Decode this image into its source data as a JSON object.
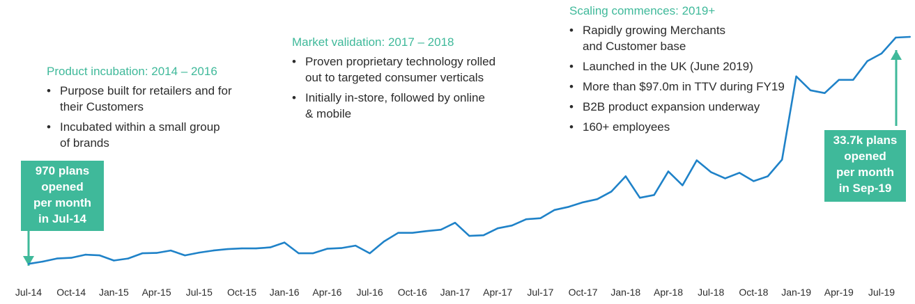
{
  "phases": [
    {
      "title": "Product incubation: 2014 – 2016",
      "bullets": [
        [
          "Purpose built for retailers and for",
          "their Customers"
        ],
        [
          "Incubated within a small group",
          "of brands"
        ]
      ]
    },
    {
      "title": "Market validation: 2017 – 2018",
      "bullets": [
        [
          "Proven proprietary technology rolled",
          "out to targeted consumer verticals"
        ],
        [
          "Initially in-store, followed by online",
          "& mobile"
        ]
      ]
    },
    {
      "title": "Scaling commences: 2019+",
      "bullets": [
        [
          "Rapidly growing Merchants",
          "and Customer base"
        ],
        [
          "Launched in the UK (June 2019)"
        ],
        [
          "More than $97.0m in TTV during FY19"
        ],
        [
          "B2B product expansion underway"
        ],
        [
          "160+ employees"
        ]
      ]
    }
  ],
  "callouts": {
    "start": [
      "970 plans",
      "opened",
      "per month",
      "in Jul-14"
    ],
    "end": [
      "33.7k plans",
      "opened",
      "per month",
      "in Sep-19"
    ]
  },
  "colors": {
    "accent": "#3fb99a",
    "line": "#1f82c8",
    "text": "#2b2b2b"
  },
  "chart_data": {
    "type": "line",
    "title": "",
    "xlabel": "",
    "ylabel": "",
    "grid": false,
    "legend": "none",
    "tick_labels": [
      "Jul-14",
      "Oct-14",
      "Jan-15",
      "Apr-15",
      "Jul-15",
      "Oct-15",
      "Jan-16",
      "Apr-16",
      "Jul-16",
      "Oct-16",
      "Jan-17",
      "Apr-17",
      "Jul-17",
      "Oct-17",
      "Jan-18",
      "Apr-18",
      "Jul-18",
      "Oct-18",
      "Jan-19",
      "Apr-19",
      "Jul-19"
    ],
    "x": [
      "Jul-14",
      "Aug-14",
      "Sep-14",
      "Oct-14",
      "Nov-14",
      "Dec-14",
      "Jan-15",
      "Feb-15",
      "Mar-15",
      "Apr-15",
      "May-15",
      "Jun-15",
      "Jul-15",
      "Aug-15",
      "Sep-15",
      "Oct-15",
      "Nov-15",
      "Dec-15",
      "Jan-16",
      "Feb-16",
      "Mar-16",
      "Apr-16",
      "May-16",
      "Jun-16",
      "Jul-16",
      "Aug-16",
      "Sep-16",
      "Oct-16",
      "Nov-16",
      "Dec-16",
      "Jan-17",
      "Feb-17",
      "Mar-17",
      "Apr-17",
      "May-17",
      "Jun-17",
      "Jul-17",
      "Aug-17",
      "Sep-17",
      "Oct-17",
      "Nov-17",
      "Dec-17",
      "Jan-18",
      "Feb-18",
      "Mar-18",
      "Apr-18",
      "May-18",
      "Jun-18",
      "Jul-18",
      "Aug-18",
      "Sep-18",
      "Oct-18",
      "Nov-18",
      "Dec-18",
      "Jan-19",
      "Feb-19",
      "Mar-19",
      "Apr-19",
      "May-19",
      "Jun-19",
      "Jul-19",
      "Aug-19",
      "Sep-19"
    ],
    "series": [
      {
        "values": [
          970,
          1300,
          1750,
          1850,
          2300,
          2200,
          1450,
          1750,
          2500,
          2550,
          2900,
          2200,
          2600,
          2900,
          3100,
          3200,
          3200,
          3350,
          4050,
          2500,
          2500,
          3150,
          3250,
          3600,
          2500,
          4200,
          5450,
          5450,
          5700,
          5900,
          6900,
          5000,
          5100,
          6100,
          6500,
          7400,
          7550,
          8750,
          9200,
          9850,
          10300,
          11400,
          13600,
          10500,
          10900,
          14300,
          12300,
          15900,
          14200,
          13300,
          14100,
          12900,
          13600,
          16000,
          28000,
          26000,
          25600,
          27500,
          27500,
          30200,
          31300,
          33600,
          33700
        ]
      }
    ],
    "ylim": [
      0,
      35000
    ]
  }
}
